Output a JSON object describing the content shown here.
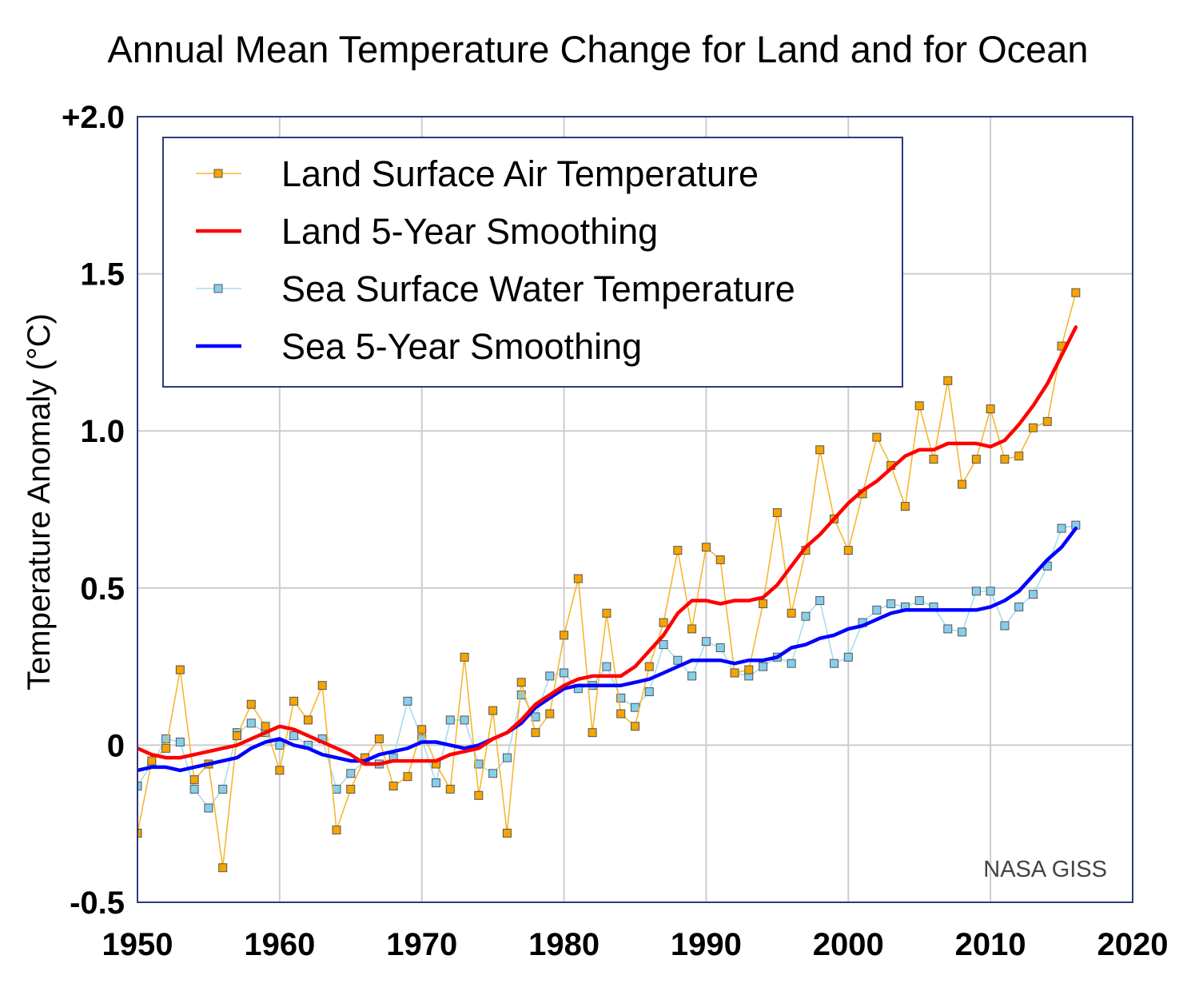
{
  "chart_data": {
    "type": "line",
    "title": "Annual Mean Temperature Change for Land and for Ocean",
    "xlabel": "",
    "ylabel": "Temperature Anomaly (°C)",
    "xlim": [
      1950,
      2020
    ],
    "ylim": [
      -0.5,
      2.0
    ],
    "x_ticks": [
      {
        "v": 1950,
        "label": "1950"
      },
      {
        "v": 1960,
        "label": "1960"
      },
      {
        "v": 1970,
        "label": "1970"
      },
      {
        "v": 1980,
        "label": "1980"
      },
      {
        "v": 1990,
        "label": "1990"
      },
      {
        "v": 2000,
        "label": "2000"
      },
      {
        "v": 2010,
        "label": "2010"
      },
      {
        "v": 2020,
        "label": "2020"
      }
    ],
    "y_ticks": [
      {
        "v": -0.5,
        "label": "-0.5"
      },
      {
        "v": 0,
        "label": "0"
      },
      {
        "v": 0.5,
        "label": "0.5"
      },
      {
        "v": 1.0,
        "label": "1.0"
      },
      {
        "v": 1.5,
        "label": "1.5"
      },
      {
        "v": 2.0,
        "label": "+2.0"
      }
    ],
    "grid": true,
    "legend_position": "top-left",
    "credit": "NASA GISS",
    "x_start": 1950,
    "series": [
      {
        "name": "Land Surface Air Temperature",
        "style": "markers",
        "color": "#f5a400",
        "line_color": "#f7b731",
        "values": [
          -0.28,
          -0.05,
          -0.01,
          0.24,
          -0.11,
          -0.06,
          -0.39,
          0.03,
          0.13,
          0.06,
          -0.08,
          0.14,
          0.08,
          0.19,
          -0.27,
          -0.14,
          -0.04,
          0.02,
          -0.13,
          -0.1,
          0.05,
          -0.06,
          -0.14,
          0.28,
          -0.16,
          0.11,
          -0.28,
          0.2,
          0.04,
          0.1,
          0.35,
          0.53,
          0.04,
          0.42,
          0.1,
          0.06,
          0.25,
          0.39,
          0.62,
          0.37,
          0.63,
          0.59,
          0.23,
          0.24,
          0.45,
          0.74,
          0.42,
          0.62,
          0.94,
          0.72,
          0.62,
          0.8,
          0.98,
          0.89,
          0.76,
          1.08,
          0.91,
          1.16,
          0.83,
          0.91,
          1.07,
          0.91,
          0.92,
          1.01,
          1.03,
          1.27,
          1.44
        ]
      },
      {
        "name": "Land 5-Year Smoothing",
        "style": "line",
        "color": "#ff0000",
        "values": [
          -0.01,
          -0.03,
          -0.04,
          -0.04,
          -0.03,
          -0.02,
          -0.01,
          0.0,
          0.02,
          0.04,
          0.06,
          0.05,
          0.03,
          0.01,
          -0.01,
          -0.03,
          -0.06,
          -0.06,
          -0.05,
          -0.05,
          -0.05,
          -0.05,
          -0.03,
          -0.02,
          -0.01,
          0.02,
          0.04,
          0.08,
          0.13,
          0.16,
          0.19,
          0.21,
          0.22,
          0.22,
          0.22,
          0.25,
          0.3,
          0.35,
          0.42,
          0.46,
          0.46,
          0.45,
          0.46,
          0.46,
          0.47,
          0.51,
          0.57,
          0.63,
          0.67,
          0.72,
          0.77,
          0.81,
          0.84,
          0.88,
          0.92,
          0.94,
          0.94,
          0.96,
          0.96,
          0.96,
          0.95,
          0.97,
          1.02,
          1.08,
          1.15,
          1.24,
          1.33
        ]
      },
      {
        "name": "Sea Surface Water Temperature",
        "style": "markers",
        "color": "#87ceeb",
        "line_color": "#a6dcef",
        "values": [
          -0.13,
          -0.06,
          0.02,
          0.01,
          -0.14,
          -0.2,
          -0.14,
          0.04,
          0.07,
          0.04,
          0.0,
          0.03,
          0.0,
          0.02,
          -0.14,
          -0.09,
          -0.05,
          -0.06,
          -0.04,
          0.14,
          0.02,
          -0.12,
          0.08,
          0.08,
          -0.06,
          -0.09,
          -0.04,
          0.16,
          0.09,
          0.22,
          0.23,
          0.18,
          0.19,
          0.25,
          0.15,
          0.12,
          0.17,
          0.32,
          0.27,
          0.22,
          0.33,
          0.31,
          0.23,
          0.22,
          0.25,
          0.28,
          0.26,
          0.41,
          0.46,
          0.26,
          0.28,
          0.39,
          0.43,
          0.45,
          0.44,
          0.46,
          0.44,
          0.37,
          0.36,
          0.49,
          0.49,
          0.38,
          0.44,
          0.48,
          0.57,
          0.69,
          0.7
        ]
      },
      {
        "name": "Sea 5-Year Smoothing",
        "style": "line",
        "color": "#0000ff",
        "values": [
          -0.08,
          -0.07,
          -0.07,
          -0.08,
          -0.07,
          -0.06,
          -0.05,
          -0.04,
          -0.01,
          0.01,
          0.02,
          0.0,
          -0.01,
          -0.03,
          -0.04,
          -0.05,
          -0.05,
          -0.03,
          -0.02,
          -0.01,
          0.01,
          0.01,
          0.0,
          -0.01,
          0.0,
          0.02,
          0.04,
          0.07,
          0.12,
          0.15,
          0.18,
          0.19,
          0.19,
          0.19,
          0.19,
          0.2,
          0.21,
          0.23,
          0.25,
          0.27,
          0.27,
          0.27,
          0.26,
          0.27,
          0.27,
          0.28,
          0.31,
          0.32,
          0.34,
          0.35,
          0.37,
          0.38,
          0.4,
          0.42,
          0.43,
          0.43,
          0.43,
          0.43,
          0.43,
          0.43,
          0.44,
          0.46,
          0.49,
          0.54,
          0.59,
          0.63,
          0.69
        ]
      }
    ]
  }
}
